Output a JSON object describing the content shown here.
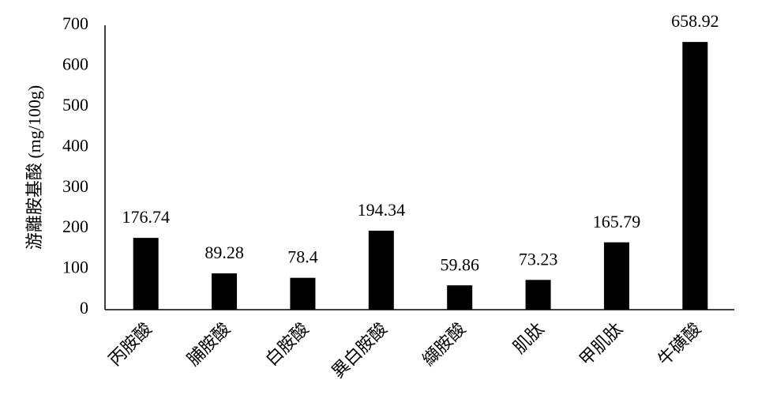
{
  "chart_data": {
    "type": "bar",
    "y_label": "游離胺基酸 (mg/100g)",
    "categories": [
      "丙胺酸",
      "脯胺酸",
      "白胺酸",
      "異白胺酸",
      "纈胺酸",
      "肌肽",
      "甲肌肽",
      "牛磺酸"
    ],
    "values": [
      176.74,
      89.28,
      78.4,
      194.34,
      59.86,
      73.23,
      165.79,
      658.92
    ],
    "color": "#000000",
    "ylim": [
      0,
      700
    ],
    "yticks": [
      0,
      100,
      200,
      300,
      400,
      500,
      600,
      700
    ],
    "grid": false
  }
}
